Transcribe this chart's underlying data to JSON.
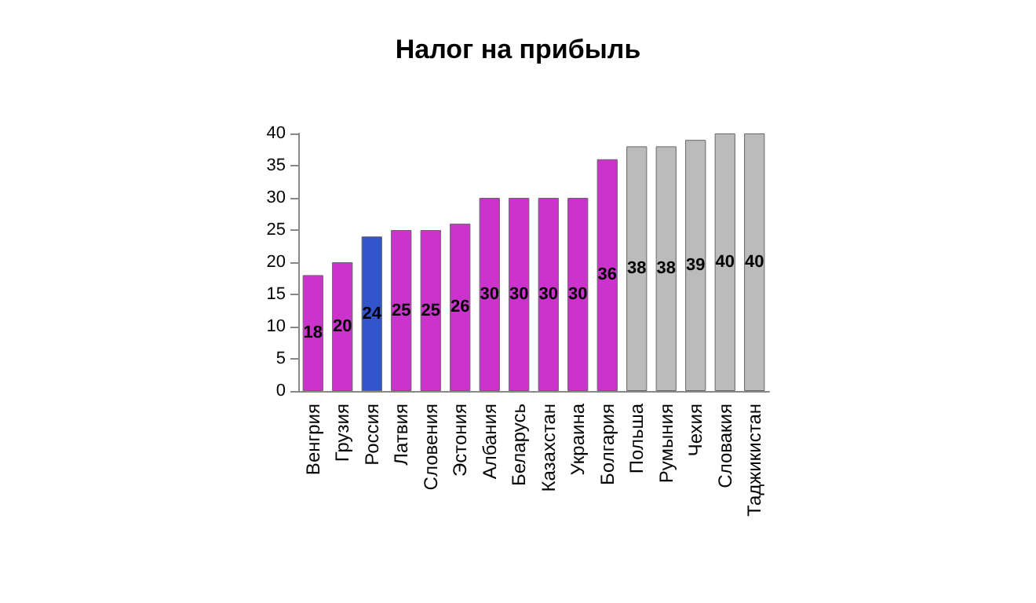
{
  "chart_data": {
    "type": "bar",
    "title": "Налог на прибыль",
    "categories": [
      "Венгрия",
      "Грузия",
      "Россия",
      "Латвия",
      "Словения",
      "Эстония",
      "Албания",
      "Беларусь",
      "Казахстан",
      "Украина",
      "Болгария",
      "Польша",
      "Румыния",
      "Чехия",
      "Словакия",
      "Таджикистан"
    ],
    "values": [
      18,
      20,
      24,
      25,
      25,
      26,
      30,
      30,
      30,
      30,
      36,
      38,
      38,
      39,
      40,
      40
    ],
    "colors": [
      "#cc33cc",
      "#cc33cc",
      "#3355cc",
      "#cc33cc",
      "#cc33cc",
      "#cc33cc",
      "#cc33cc",
      "#cc33cc",
      "#cc33cc",
      "#cc33cc",
      "#cc33cc",
      "#bbbbbb",
      "#bbbbbb",
      "#bbbbbb",
      "#bbbbbb",
      "#bbbbbb"
    ],
    "ylim": [
      0,
      40
    ],
    "yticks": [
      0,
      5,
      10,
      15,
      20,
      25,
      30,
      35,
      40
    ],
    "grid": false,
    "data_labels": true
  }
}
